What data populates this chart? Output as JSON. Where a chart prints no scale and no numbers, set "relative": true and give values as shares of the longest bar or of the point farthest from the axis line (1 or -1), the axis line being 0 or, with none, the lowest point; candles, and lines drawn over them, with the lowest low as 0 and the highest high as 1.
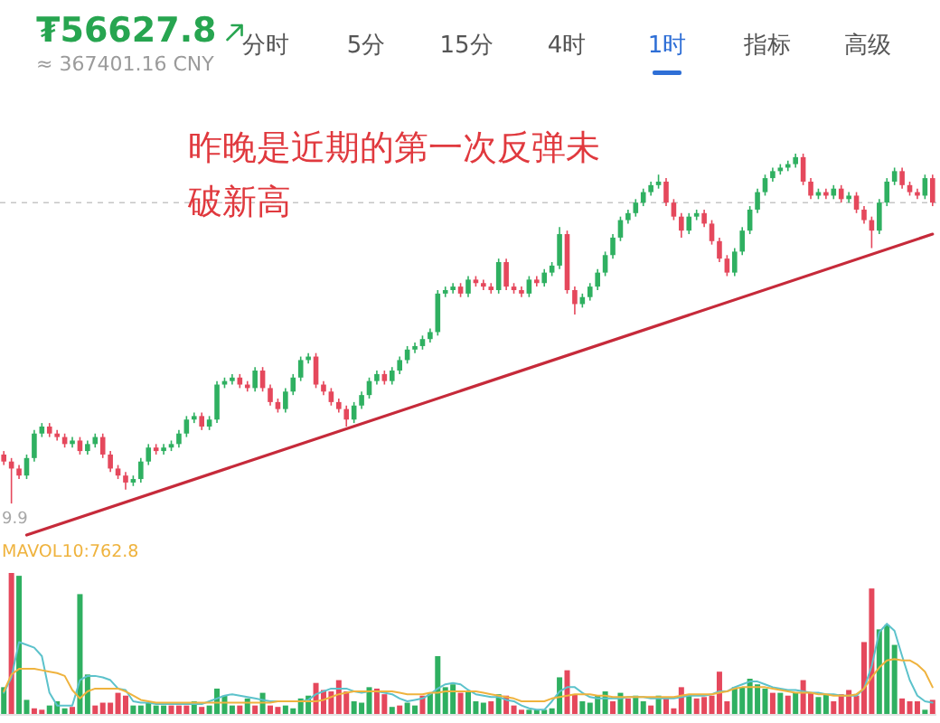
{
  "chart_data": [
    {
      "type": "other",
      "title": "₮56627.8",
      "subtitle": "≈ 367401.16 CNY",
      "categories": [
        "分时",
        "5分",
        "15分",
        "4时",
        "1时",
        "指标",
        "高级"
      ],
      "colors": [
        "#555555",
        "#555555",
        "#555555",
        "#555555",
        "#2f6fd6",
        "#555555",
        "#555555"
      ]
    },
    {
      "type": "candlestick",
      "relative": true,
      "categories": [
        null,
        null,
        null,
        null,
        null,
        null,
        null,
        null,
        null,
        null,
        null,
        null,
        null,
        null,
        null,
        null,
        null,
        null,
        null,
        null,
        null,
        null,
        null,
        null,
        null,
        null,
        null,
        null,
        null,
        null,
        null,
        null,
        null,
        null,
        null,
        null,
        null,
        null,
        null,
        null,
        null,
        null,
        null,
        null,
        null,
        null,
        null,
        null,
        null,
        null,
        null,
        null,
        null,
        null,
        null,
        null,
        null,
        null,
        null,
        null,
        null,
        null,
        null,
        null,
        null,
        null,
        null,
        null,
        null,
        null,
        null,
        null,
        null,
        null,
        null,
        null,
        null,
        null,
        null,
        null,
        null,
        null,
        null,
        null,
        null,
        null,
        null,
        null,
        null,
        null,
        null,
        null,
        null,
        null,
        null,
        null,
        null,
        null,
        null,
        null,
        null,
        null,
        null,
        null,
        null,
        null,
        null,
        null,
        null,
        null,
        null,
        null,
        null,
        null,
        null,
        null,
        null,
        null,
        null,
        null,
        null,
        null,
        null
      ],
      "ohlc": [
        [
          0.14,
          0.15,
          0.11,
          0.12
        ],
        [
          0.12,
          0.13,
          0.0,
          0.1
        ],
        [
          0.1,
          0.11,
          0.07,
          0.08
        ],
        [
          0.08,
          0.14,
          0.07,
          0.13
        ],
        [
          0.13,
          0.21,
          0.12,
          0.2
        ],
        [
          0.2,
          0.23,
          0.19,
          0.22
        ],
        [
          0.22,
          0.23,
          0.19,
          0.2
        ],
        [
          0.2,
          0.21,
          0.18,
          0.19
        ],
        [
          0.19,
          0.2,
          0.16,
          0.17
        ],
        [
          0.17,
          0.19,
          0.16,
          0.18
        ],
        [
          0.18,
          0.19,
          0.14,
          0.15
        ],
        [
          0.15,
          0.18,
          0.14,
          0.17
        ],
        [
          0.17,
          0.2,
          0.16,
          0.19
        ],
        [
          0.19,
          0.2,
          0.13,
          0.14
        ],
        [
          0.14,
          0.15,
          0.09,
          0.1
        ],
        [
          0.1,
          0.11,
          0.07,
          0.08
        ],
        [
          0.08,
          0.09,
          0.04,
          0.06
        ],
        [
          0.06,
          0.08,
          0.05,
          0.07
        ],
        [
          0.07,
          0.13,
          0.06,
          0.12
        ],
        [
          0.12,
          0.17,
          0.11,
          0.16
        ],
        [
          0.16,
          0.17,
          0.14,
          0.15
        ],
        [
          0.15,
          0.17,
          0.14,
          0.16
        ],
        [
          0.16,
          0.18,
          0.15,
          0.17
        ],
        [
          0.17,
          0.21,
          0.16,
          0.2
        ],
        [
          0.2,
          0.25,
          0.19,
          0.24
        ],
        [
          0.24,
          0.26,
          0.23,
          0.25
        ],
        [
          0.25,
          0.26,
          0.21,
          0.22
        ],
        [
          0.22,
          0.25,
          0.21,
          0.24
        ],
        [
          0.24,
          0.35,
          0.23,
          0.34
        ],
        [
          0.34,
          0.36,
          0.33,
          0.35
        ],
        [
          0.35,
          0.37,
          0.34,
          0.36
        ],
        [
          0.36,
          0.37,
          0.33,
          0.34
        ],
        [
          0.34,
          0.35,
          0.32,
          0.33
        ],
        [
          0.33,
          0.39,
          0.32,
          0.38
        ],
        [
          0.38,
          0.39,
          0.32,
          0.33
        ],
        [
          0.33,
          0.34,
          0.28,
          0.29
        ],
        [
          0.29,
          0.3,
          0.26,
          0.27
        ],
        [
          0.27,
          0.33,
          0.26,
          0.32
        ],
        [
          0.32,
          0.37,
          0.31,
          0.36
        ],
        [
          0.36,
          0.42,
          0.35,
          0.41
        ],
        [
          0.41,
          0.43,
          0.4,
          0.42
        ],
        [
          0.42,
          0.43,
          0.33,
          0.34
        ],
        [
          0.34,
          0.35,
          0.31,
          0.32
        ],
        [
          0.32,
          0.33,
          0.28,
          0.29
        ],
        [
          0.29,
          0.3,
          0.26,
          0.27
        ],
        [
          0.27,
          0.28,
          0.22,
          0.24
        ],
        [
          0.24,
          0.29,
          0.23,
          0.28
        ],
        [
          0.28,
          0.32,
          0.27,
          0.31
        ],
        [
          0.31,
          0.36,
          0.3,
          0.35
        ],
        [
          0.35,
          0.38,
          0.34,
          0.37
        ],
        [
          0.37,
          0.38,
          0.34,
          0.35
        ],
        [
          0.35,
          0.39,
          0.34,
          0.38
        ],
        [
          0.38,
          0.42,
          0.37,
          0.41
        ],
        [
          0.41,
          0.45,
          0.4,
          0.44
        ],
        [
          0.44,
          0.46,
          0.43,
          0.45
        ],
        [
          0.45,
          0.48,
          0.44,
          0.47
        ],
        [
          0.47,
          0.5,
          0.46,
          0.49
        ],
        [
          0.49,
          0.61,
          0.48,
          0.6
        ],
        [
          0.6,
          0.62,
          0.59,
          0.61
        ],
        [
          0.61,
          0.63,
          0.6,
          0.62
        ],
        [
          0.62,
          0.63,
          0.59,
          0.6
        ],
        [
          0.6,
          0.65,
          0.59,
          0.64
        ],
        [
          0.64,
          0.65,
          0.62,
          0.63
        ],
        [
          0.63,
          0.64,
          0.61,
          0.62
        ],
        [
          0.62,
          0.63,
          0.6,
          0.61
        ],
        [
          0.61,
          0.7,
          0.6,
          0.69
        ],
        [
          0.69,
          0.7,
          0.61,
          0.62
        ],
        [
          0.62,
          0.63,
          0.6,
          0.61
        ],
        [
          0.61,
          0.62,
          0.59,
          0.6
        ],
        [
          0.6,
          0.65,
          0.59,
          0.64
        ],
        [
          0.64,
          0.65,
          0.62,
          0.63
        ],
        [
          0.63,
          0.67,
          0.62,
          0.66
        ],
        [
          0.66,
          0.69,
          0.65,
          0.68
        ],
        [
          0.68,
          0.79,
          0.67,
          0.77
        ],
        [
          0.77,
          0.78,
          0.6,
          0.61
        ],
        [
          0.61,
          0.62,
          0.54,
          0.57
        ],
        [
          0.57,
          0.6,
          0.56,
          0.59
        ],
        [
          0.59,
          0.63,
          0.58,
          0.62
        ],
        [
          0.62,
          0.67,
          0.61,
          0.66
        ],
        [
          0.66,
          0.72,
          0.65,
          0.71
        ],
        [
          0.71,
          0.77,
          0.7,
          0.76
        ],
        [
          0.76,
          0.82,
          0.75,
          0.81
        ],
        [
          0.81,
          0.84,
          0.8,
          0.83
        ],
        [
          0.83,
          0.87,
          0.82,
          0.86
        ],
        [
          0.86,
          0.9,
          0.85,
          0.89
        ],
        [
          0.89,
          0.92,
          0.88,
          0.91
        ],
        [
          0.91,
          0.94,
          0.9,
          0.92
        ],
        [
          0.92,
          0.93,
          0.85,
          0.86
        ],
        [
          0.86,
          0.87,
          0.81,
          0.82
        ],
        [
          0.82,
          0.83,
          0.76,
          0.78
        ],
        [
          0.78,
          0.83,
          0.77,
          0.82
        ],
        [
          0.82,
          0.84,
          0.81,
          0.83
        ],
        [
          0.83,
          0.84,
          0.79,
          0.8
        ],
        [
          0.8,
          0.81,
          0.74,
          0.75
        ],
        [
          0.75,
          0.76,
          0.69,
          0.7
        ],
        [
          0.7,
          0.71,
          0.65,
          0.66
        ],
        [
          0.66,
          0.73,
          0.65,
          0.72
        ],
        [
          0.72,
          0.79,
          0.71,
          0.78
        ],
        [
          0.78,
          0.85,
          0.77,
          0.84
        ],
        [
          0.84,
          0.9,
          0.83,
          0.89
        ],
        [
          0.89,
          0.94,
          0.88,
          0.93
        ],
        [
          0.93,
          0.96,
          0.92,
          0.95
        ],
        [
          0.95,
          0.97,
          0.94,
          0.96
        ],
        [
          0.96,
          0.98,
          0.95,
          0.97
        ],
        [
          0.97,
          1.0,
          0.96,
          0.99
        ],
        [
          0.99,
          1.0,
          0.91,
          0.92
        ],
        [
          0.92,
          0.93,
          0.87,
          0.88
        ],
        [
          0.88,
          0.9,
          0.87,
          0.89
        ],
        [
          0.89,
          0.9,
          0.87,
          0.88
        ],
        [
          0.88,
          0.91,
          0.87,
          0.9
        ],
        [
          0.9,
          0.91,
          0.86,
          0.87
        ],
        [
          0.87,
          0.89,
          0.86,
          0.88
        ],
        [
          0.88,
          0.89,
          0.83,
          0.84
        ],
        [
          0.84,
          0.85,
          0.8,
          0.81
        ],
        [
          0.81,
          0.82,
          0.73,
          0.78
        ],
        [
          0.78,
          0.87,
          0.77,
          0.86
        ],
        [
          0.86,
          0.93,
          0.85,
          0.92
        ],
        [
          0.92,
          0.96,
          0.91,
          0.95
        ],
        [
          0.95,
          0.96,
          0.9,
          0.91
        ],
        [
          0.91,
          0.92,
          0.88,
          0.89
        ],
        [
          0.89,
          0.9,
          0.87,
          0.88
        ],
        [
          0.88,
          0.94,
          0.87,
          0.93
        ],
        [
          0.93,
          0.94,
          0.85,
          0.86
        ]
      ],
      "colors": [
        "#e5485c",
        "#e5485c",
        "#e5485c",
        "#2fb061",
        "#2fb061",
        "#2fb061",
        "#e5485c",
        "#e5485c",
        "#e5485c",
        "#2fb061",
        "#e5485c",
        "#2fb061",
        "#2fb061",
        "#e5485c",
        "#e5485c",
        "#e5485c",
        "#e5485c",
        "#2fb061",
        "#2fb061",
        "#2fb061",
        "#e5485c",
        "#2fb061",
        "#2fb061",
        "#2fb061",
        "#2fb061",
        "#2fb061",
        "#e5485c",
        "#2fb061",
        "#2fb061",
        "#2fb061",
        "#2fb061",
        "#e5485c",
        "#e5485c",
        "#2fb061",
        "#e5485c",
        "#e5485c",
        "#e5485c",
        "#2fb061",
        "#2fb061",
        "#2fb061",
        "#2fb061",
        "#e5485c",
        "#e5485c",
        "#e5485c",
        "#e5485c",
        "#e5485c",
        "#2fb061",
        "#2fb061",
        "#2fb061",
        "#2fb061",
        "#e5485c",
        "#2fb061",
        "#2fb061",
        "#2fb061",
        "#2fb061",
        "#2fb061",
        "#2fb061",
        "#2fb061",
        "#2fb061",
        "#2fb061",
        "#e5485c",
        "#2fb061",
        "#e5485c",
        "#e5485c",
        "#e5485c",
        "#2fb061",
        "#e5485c",
        "#e5485c",
        "#e5485c",
        "#2fb061",
        "#e5485c",
        "#2fb061",
        "#2fb061",
        "#2fb061",
        "#e5485c",
        "#e5485c",
        "#2fb061",
        "#2fb061",
        "#2fb061",
        "#2fb061",
        "#2fb061",
        "#2fb061",
        "#2fb061",
        "#2fb061",
        "#2fb061",
        "#2fb061",
        "#2fb061",
        "#e5485c",
        "#e5485c",
        "#e5485c",
        "#2fb061",
        "#2fb061",
        "#e5485c",
        "#e5485c",
        "#e5485c",
        "#e5485c",
        "#2fb061",
        "#2fb061",
        "#2fb061",
        "#2fb061",
        "#2fb061",
        "#2fb061",
        "#2fb061",
        "#2fb061",
        "#2fb061",
        "#e5485c",
        "#e5485c",
        "#2fb061",
        "#e5485c",
        "#2fb061",
        "#e5485c",
        "#2fb061",
        "#e5485c",
        "#e5485c",
        "#e5485c",
        "#2fb061",
        "#2fb061",
        "#2fb061",
        "#e5485c",
        "#e5485c",
        "#e5485c",
        "#2fb061",
        "#e5485c"
      ],
      "series": [
        {
          "type": "line",
          "color": "#c62a3a",
          "values": [
            null,
            null,
            null,
            -0.09,
            null,
            null,
            null,
            null,
            null,
            null,
            null,
            null,
            null,
            null,
            null,
            null,
            null,
            null,
            null,
            null,
            null,
            null,
            null,
            null,
            null,
            null,
            null,
            null,
            null,
            null,
            null,
            null,
            null,
            null,
            null,
            null,
            null,
            null,
            null,
            null,
            null,
            null,
            null,
            null,
            null,
            null,
            null,
            null,
            null,
            null,
            null,
            null,
            null,
            null,
            null,
            null,
            null,
            null,
            null,
            null,
            null,
            null,
            null,
            null,
            null,
            null,
            null,
            null,
            null,
            null,
            null,
            null,
            null,
            null,
            null,
            null,
            null,
            null,
            null,
            null,
            null,
            null,
            null,
            null,
            null,
            null,
            null,
            null,
            null,
            null,
            null,
            null,
            null,
            null,
            null,
            null,
            null,
            null,
            null,
            null,
            null,
            null,
            null,
            null,
            null,
            null,
            null,
            null,
            null,
            null,
            null,
            null,
            null,
            null,
            null,
            null,
            null,
            null,
            null,
            null,
            null,
            null,
            0.77
          ]
        }
      ],
      "ref_lines": [
        {
          "axis": "y",
          "value": 0.86,
          "color": "#c6c6c6",
          "line_style": "dashed"
        }
      ],
      "annotations": [
        "昨晚是近期的第一次反弹未破新高",
        {
          "text": "9.9",
          "y": 0
        }
      ]
    },
    {
      "type": "bar",
      "relative": true,
      "categories": [
        null,
        null,
        null,
        null,
        null,
        null,
        null,
        null,
        null,
        null,
        null,
        null,
        null,
        null,
        null,
        null,
        null,
        null,
        null,
        null,
        null,
        null,
        null,
        null,
        null,
        null,
        null,
        null,
        null,
        null,
        null,
        null,
        null,
        null,
        null,
        null,
        null,
        null,
        null,
        null,
        null,
        null,
        null,
        null,
        null,
        null,
        null,
        null,
        null,
        null,
        null,
        null,
        null,
        null,
        null,
        null,
        null,
        null,
        null,
        null,
        null,
        null,
        null,
        null,
        null,
        null,
        null,
        null,
        null,
        null,
        null,
        null,
        null,
        null,
        null,
        null,
        null,
        null,
        null,
        null,
        null,
        null,
        null,
        null,
        null,
        null,
        null,
        null,
        null,
        null,
        null,
        null,
        null,
        null,
        null,
        null,
        null,
        null,
        null,
        null,
        null,
        null,
        null,
        null,
        null,
        null,
        null,
        null,
        null,
        null,
        null,
        null,
        null,
        null,
        null,
        null,
        null,
        null,
        null,
        null,
        null,
        null,
        null
      ],
      "series": [
        {
          "type": "bar",
          "values": [
            0.19,
            1.0,
            0.98,
            0.1,
            0.04,
            0.03,
            0.06,
            0.09,
            0.04,
            0.05,
            0.85,
            0.28,
            0.06,
            0.08,
            0.08,
            0.15,
            0.13,
            0.06,
            0.06,
            0.08,
            0.06,
            0.06,
            0.06,
            0.06,
            0.06,
            0.09,
            0.05,
            0.06,
            0.18,
            0.13,
            0.06,
            0.06,
            0.11,
            0.06,
            0.15,
            0.06,
            0.05,
            0.06,
            0.04,
            0.11,
            0.13,
            0.22,
            0.17,
            0.16,
            0.24,
            0.16,
            0.09,
            0.08,
            0.19,
            0.18,
            0.14,
            0.05,
            0.06,
            0.08,
            0.06,
            0.13,
            0.15,
            0.41,
            0.19,
            0.21,
            0.15,
            0.16,
            0.09,
            0.08,
            0.09,
            0.14,
            0.13,
            0.06,
            0.03,
            0.03,
            0.03,
            0.03,
            0.04,
            0.26,
            0.31,
            0.14,
            0.09,
            0.08,
            0.13,
            0.16,
            0.09,
            0.15,
            0.11,
            0.13,
            0.09,
            0.06,
            0.13,
            0.12,
            0.04,
            0.19,
            0.14,
            0.11,
            0.12,
            0.13,
            0.3,
            0.09,
            0.19,
            0.19,
            0.25,
            0.21,
            0.18,
            0.15,
            0.15,
            0.13,
            0.15,
            0.24,
            0.15,
            0.12,
            0.14,
            0.09,
            0.14,
            0.17,
            0.13,
            0.51,
            0.89,
            0.6,
            0.63,
            0.49,
            0.11,
            0.09,
            0.09,
            0.03,
            0.1
          ],
          "colors": [
            "#2fb061",
            "#e5485c",
            "#2fb061",
            "#2fb061",
            "#e5485c",
            "#e5485c",
            "#2fb061",
            "#2fb061",
            "#2fb061",
            "#e5485c",
            "#2fb061",
            "#2fb061",
            "#e5485c",
            "#e5485c",
            "#e5485c",
            "#e5485c",
            "#e5485c",
            "#2fb061",
            "#2fb061",
            "#2fb061",
            "#2fb061",
            "#2fb061",
            "#e5485c",
            "#e5485c",
            "#e5485c",
            "#2fb061",
            "#e5485c",
            "#2fb061",
            "#2fb061",
            "#2fb061",
            "#2fb061",
            "#e5485c",
            "#2fb061",
            "#e5485c",
            "#2fb061",
            "#e5485c",
            "#e5485c",
            "#2fb061",
            "#2fb061",
            "#2fb061",
            "#2fb061",
            "#e5485c",
            "#e5485c",
            "#e5485c",
            "#e5485c",
            "#e5485c",
            "#2fb061",
            "#2fb061",
            "#2fb061",
            "#e5485c",
            "#e5485c",
            "#2fb061",
            "#e5485c",
            "#2fb061",
            "#2fb061",
            "#e5485c",
            "#2fb061",
            "#2fb061",
            "#2fb061",
            "#2fb061",
            "#e5485c",
            "#2fb061",
            "#2fb061",
            "#2fb061",
            "#e5485c",
            "#2fb061",
            "#e5485c",
            "#e5485c",
            "#e5485c",
            "#2fb061",
            "#2fb061",
            "#2fb061",
            "#2fb061",
            "#2fb061",
            "#e5485c",
            "#e5485c",
            "#2fb061",
            "#2fb061",
            "#2fb061",
            "#2fb061",
            "#e5485c",
            "#2fb061",
            "#e5485c",
            "#2fb061",
            "#2fb061",
            "#e5485c",
            "#2fb061",
            "#e5485c",
            "#e5485c",
            "#e5485c",
            "#2fb061",
            "#e5485c",
            "#e5485c",
            "#e5485c",
            "#e5485c",
            "#e5485c",
            "#2fb061",
            "#2fb061",
            "#2fb061",
            "#2fb061",
            "#2fb061",
            "#e5485c",
            "#2fb061",
            "#e5485c",
            "#2fb061",
            "#e5485c",
            "#e5485c",
            "#2fb061",
            "#2fb061",
            "#e5485c",
            "#e5485c",
            "#e5485c",
            "#e5485c",
            "#e5485c",
            "#e5485c",
            "#2fb061",
            "#2fb061",
            "#2fb061",
            "#e5485c",
            "#e5485c",
            "#e5485c",
            "#2fb061",
            "#e5485c"
          ]
        },
        {
          "type": "line",
          "color": "#5cc2cb",
          "values": [
            0.15,
            0.26,
            0.51,
            0.49,
            0.47,
            0.41,
            0.15,
            0.06,
            0.06,
            0.06,
            0.24,
            0.27,
            0.27,
            0.26,
            0.24,
            0.18,
            0.17,
            0.09,
            0.08,
            0.08,
            0.07,
            0.07,
            0.07,
            0.07,
            0.07,
            0.07,
            0.07,
            0.09,
            0.11,
            0.13,
            0.14,
            0.13,
            0.12,
            0.11,
            0.1,
            0.09,
            0.09,
            0.09,
            0.09,
            0.09,
            0.1,
            0.14,
            0.16,
            0.18,
            0.18,
            0.18,
            0.16,
            0.15,
            0.16,
            0.16,
            0.15,
            0.14,
            0.11,
            0.09,
            0.1,
            0.11,
            0.14,
            0.18,
            0.21,
            0.22,
            0.21,
            0.17,
            0.14,
            0.13,
            0.12,
            0.12,
            0.1,
            0.09,
            0.06,
            0.04,
            0.03,
            0.03,
            0.09,
            0.16,
            0.19,
            0.19,
            0.15,
            0.12,
            0.11,
            0.11,
            0.11,
            0.11,
            0.12,
            0.12,
            0.12,
            0.11,
            0.11,
            0.11,
            0.11,
            0.12,
            0.13,
            0.13,
            0.13,
            0.14,
            0.16,
            0.16,
            0.19,
            0.21,
            0.23,
            0.23,
            0.21,
            0.19,
            0.18,
            0.17,
            0.17,
            0.16,
            0.15,
            0.15,
            0.14,
            0.14,
            0.13,
            0.13,
            0.13,
            0.18,
            0.34,
            0.58,
            0.64,
            0.59,
            0.41,
            0.24,
            0.13,
            0.09,
            0.08
          ]
        },
        {
          "type": "line",
          "name": "MAVOL10:762.8",
          "color": "#efb33e",
          "values": [
            0.16,
            0.28,
            0.32,
            0.32,
            0.32,
            0.31,
            0.3,
            0.29,
            0.27,
            0.17,
            0.11,
            0.16,
            0.18,
            0.18,
            0.18,
            0.18,
            0.16,
            0.13,
            0.1,
            0.09,
            0.08,
            0.08,
            0.08,
            0.08,
            0.08,
            0.08,
            0.08,
            0.08,
            0.08,
            0.08,
            0.08,
            0.08,
            0.08,
            0.08,
            0.08,
            0.08,
            0.09,
            0.09,
            0.09,
            0.09,
            0.09,
            0.09,
            0.1,
            0.12,
            0.14,
            0.15,
            0.16,
            0.16,
            0.16,
            0.16,
            0.16,
            0.16,
            0.15,
            0.14,
            0.14,
            0.14,
            0.15,
            0.15,
            0.16,
            0.16,
            0.16,
            0.16,
            0.16,
            0.15,
            0.14,
            0.13,
            0.12,
            0.11,
            0.09,
            0.09,
            0.09,
            0.09,
            0.11,
            0.12,
            0.13,
            0.14,
            0.14,
            0.14,
            0.13,
            0.13,
            0.12,
            0.12,
            0.12,
            0.12,
            0.12,
            0.12,
            0.12,
            0.12,
            0.12,
            0.13,
            0.14,
            0.14,
            0.14,
            0.14,
            0.15,
            0.16,
            0.18,
            0.19,
            0.19,
            0.19,
            0.19,
            0.18,
            0.17,
            0.16,
            0.15,
            0.15,
            0.15,
            0.14,
            0.14,
            0.13,
            0.13,
            0.13,
            0.14,
            0.18,
            0.26,
            0.33,
            0.38,
            0.39,
            0.38,
            0.38,
            0.35,
            0.3,
            0.19
          ]
        }
      ]
    }
  ]
}
